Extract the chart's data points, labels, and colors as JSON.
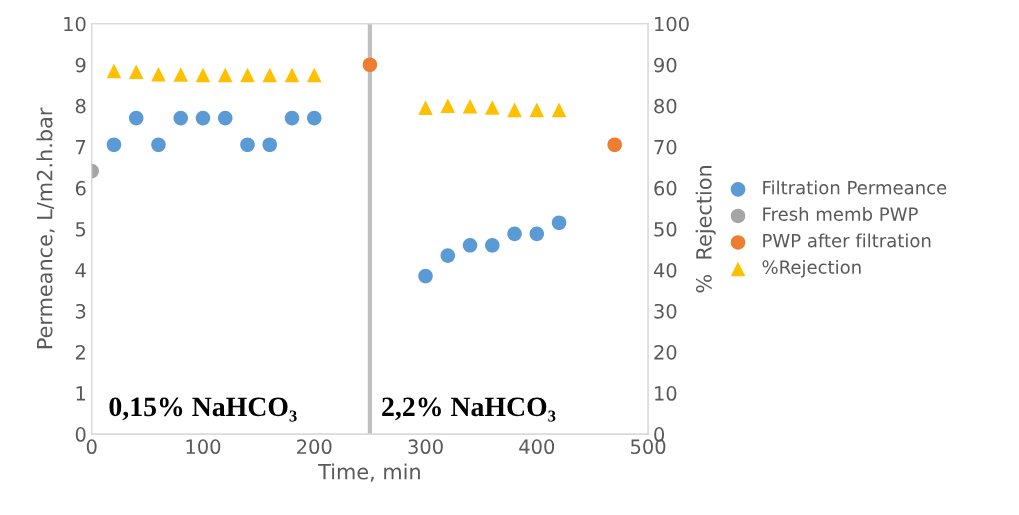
{
  "chart_data": {
    "type": "scatter",
    "xlabel": "Time, min",
    "ylabel": "Permeance, L/m2.h.bar",
    "y2label": "%  Rejection",
    "xlim": [
      0,
      500
    ],
    "xticks": [
      0,
      100,
      200,
      300,
      400,
      500
    ],
    "ylim": [
      0,
      10
    ],
    "yticks": [
      0,
      1,
      2,
      3,
      4,
      5,
      6,
      7,
      8,
      9,
      10
    ],
    "y2lim": [
      0,
      100
    ],
    "y2ticks": [
      0,
      10,
      20,
      30,
      40,
      50,
      60,
      70,
      80,
      90,
      100
    ],
    "grid": false,
    "legend": "right",
    "ref_lines": [
      {
        "axis": "x",
        "value": 250,
        "color": "#bfbfbf",
        "line_style": "solid"
      }
    ],
    "annotations": [
      "0,15% NaHCO₃",
      "2,2% NaHCO₃"
    ],
    "series": [
      {
        "name": "Filtration Permeance",
        "color": "#5b9bd5",
        "marker": "circle",
        "x": [
          20,
          40,
          60,
          80,
          100,
          120,
          140,
          160,
          180,
          200,
          300,
          320,
          340,
          360,
          380,
          400,
          420
        ],
        "values": [
          7.05,
          7.7,
          7.05,
          7.7,
          7.7,
          7.7,
          7.05,
          7.05,
          7.7,
          7.7,
          3.85,
          4.35,
          4.6,
          4.6,
          4.88,
          4.88,
          5.15
        ]
      },
      {
        "name": "Fresh memb PWP",
        "color": "#a5a5a5",
        "marker": "circle",
        "x": [
          0
        ],
        "values": [
          6.41
        ]
      },
      {
        "name": "PWP after filtration",
        "color": "#ed7d31",
        "marker": "circle",
        "x": [
          250,
          470
        ],
        "values": [
          9.0,
          7.05
        ]
      },
      {
        "name": "%Rejection",
        "color": "#ffc000",
        "marker": "triangle",
        "axis": "y2",
        "x": [
          20,
          40,
          60,
          80,
          100,
          120,
          140,
          160,
          180,
          200,
          300,
          320,
          340,
          360,
          380,
          400,
          420
        ],
        "values": [
          88.5,
          88.3,
          87.7,
          87.6,
          87.5,
          87.5,
          87.5,
          87.5,
          87.5,
          87.5,
          79.5,
          80.0,
          79.9,
          79.6,
          79.0,
          79.0,
          79.0
        ]
      }
    ]
  }
}
